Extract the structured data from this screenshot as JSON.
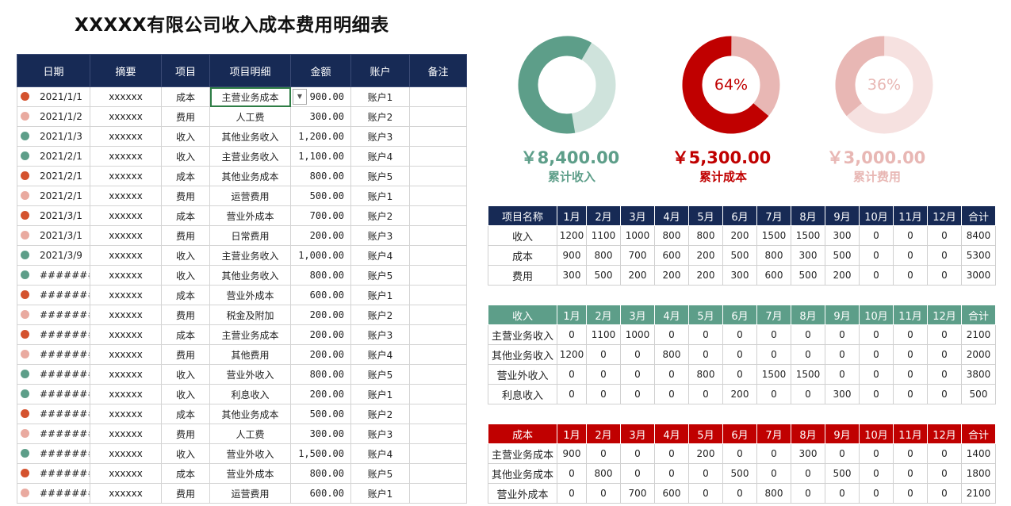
{
  "title": "XXXXX有限公司收入成本费用明细表",
  "colors": {
    "navy": "#172a55",
    "income": "#5d9e89",
    "cost": "#c00000",
    "expense": "#e8b7b4"
  },
  "ledger": {
    "headers": [
      "日期",
      "摘要",
      "项目",
      "项目明细",
      "金额",
      "账户",
      "备注"
    ],
    "rows": [
      {
        "date": "2021/1/1",
        "summary": "xxxxxx",
        "item": "成本",
        "detail": "主营业务成本",
        "amount": "900.00",
        "account": "账户1",
        "note": ""
      },
      {
        "date": "2021/1/2",
        "summary": "xxxxxx",
        "item": "费用",
        "detail": "人工费",
        "amount": "300.00",
        "account": "账户2",
        "note": ""
      },
      {
        "date": "2021/1/3",
        "summary": "xxxxxx",
        "item": "收入",
        "detail": "其他业务收入",
        "amount": "1,200.00",
        "account": "账户3",
        "note": ""
      },
      {
        "date": "2021/2/1",
        "summary": "xxxxxx",
        "item": "收入",
        "detail": "主营业务收入",
        "amount": "1,100.00",
        "account": "账户4",
        "note": ""
      },
      {
        "date": "2021/2/1",
        "summary": "xxxxxx",
        "item": "成本",
        "detail": "其他业务成本",
        "amount": "800.00",
        "account": "账户5",
        "note": ""
      },
      {
        "date": "2021/2/1",
        "summary": "xxxxxx",
        "item": "费用",
        "detail": "运营费用",
        "amount": "500.00",
        "account": "账户1",
        "note": ""
      },
      {
        "date": "2021/3/1",
        "summary": "xxxxxx",
        "item": "成本",
        "detail": "营业外成本",
        "amount": "700.00",
        "account": "账户2",
        "note": ""
      },
      {
        "date": "2021/3/1",
        "summary": "xxxxxx",
        "item": "费用",
        "detail": "日常费用",
        "amount": "200.00",
        "account": "账户3",
        "note": ""
      },
      {
        "date": "2021/3/9",
        "summary": "xxxxxx",
        "item": "收入",
        "detail": "主营业务收入",
        "amount": "1,000.00",
        "account": "账户4",
        "note": ""
      },
      {
        "date": "########",
        "summary": "xxxxxx",
        "item": "收入",
        "detail": "其他业务收入",
        "amount": "800.00",
        "account": "账户5",
        "note": ""
      },
      {
        "date": "########",
        "summary": "xxxxxx",
        "item": "成本",
        "detail": "营业外成本",
        "amount": "600.00",
        "account": "账户1",
        "note": ""
      },
      {
        "date": "########",
        "summary": "xxxxxx",
        "item": "费用",
        "detail": "税金及附加",
        "amount": "200.00",
        "account": "账户2",
        "note": ""
      },
      {
        "date": "########",
        "summary": "xxxxxx",
        "item": "成本",
        "detail": "主营业务成本",
        "amount": "200.00",
        "account": "账户3",
        "note": ""
      },
      {
        "date": "########",
        "summary": "xxxxxx",
        "item": "费用",
        "detail": "其他费用",
        "amount": "200.00",
        "account": "账户4",
        "note": ""
      },
      {
        "date": "########",
        "summary": "xxxxxx",
        "item": "收入",
        "detail": "营业外收入",
        "amount": "800.00",
        "account": "账户5",
        "note": ""
      },
      {
        "date": "########",
        "summary": "xxxxxx",
        "item": "收入",
        "detail": "利息收入",
        "amount": "200.00",
        "account": "账户1",
        "note": ""
      },
      {
        "date": "########",
        "summary": "xxxxxx",
        "item": "成本",
        "detail": "其他业务成本",
        "amount": "500.00",
        "account": "账户2",
        "note": ""
      },
      {
        "date": "########",
        "summary": "xxxxxx",
        "item": "费用",
        "detail": "人工费",
        "amount": "300.00",
        "account": "账户3",
        "note": ""
      },
      {
        "date": "########",
        "summary": "xxxxxx",
        "item": "收入",
        "detail": "营业外收入",
        "amount": "1,500.00",
        "account": "账户4",
        "note": ""
      },
      {
        "date": "########",
        "summary": "xxxxxx",
        "item": "成本",
        "detail": "营业外成本",
        "amount": "800.00",
        "account": "账户5",
        "note": ""
      },
      {
        "date": "########",
        "summary": "xxxxxx",
        "item": "费用",
        "detail": "运营费用",
        "amount": "600.00",
        "account": "账户1",
        "note": ""
      }
    ]
  },
  "kpis": [
    {
      "total": "￥8,400.00",
      "caption": "累计收入",
      "percent_label": "",
      "share": 0.61,
      "color": "#5d9e89",
      "rest": "#cfe3dc"
    },
    {
      "total": "￥5,300.00",
      "caption": "累计成本",
      "percent_label": "64%",
      "share": 0.64,
      "color": "#c00000",
      "rest": "#e8b7b4"
    },
    {
      "total": "￥3,000.00",
      "caption": "累计费用",
      "percent_label": "36%",
      "share": 0.36,
      "color": "#e8b7b4",
      "rest": "#f6e1e0"
    }
  ],
  "months": [
    "1月",
    "2月",
    "3月",
    "4月",
    "5月",
    "6月",
    "7月",
    "8月",
    "9月",
    "10月",
    "11月",
    "12月"
  ],
  "tables": [
    {
      "key": "summary",
      "corner": "项目名称",
      "total_label": "合计",
      "color": "#172a55",
      "rows": [
        {
          "label": "收入",
          "values": [
            "1200",
            "1100",
            "1000",
            "800",
            "800",
            "200",
            "1500",
            "1500",
            "300",
            "0",
            "0",
            "0"
          ],
          "total": "8400"
        },
        {
          "label": "成本",
          "values": [
            "900",
            "800",
            "700",
            "600",
            "200",
            "500",
            "800",
            "300",
            "500",
            "0",
            "0",
            "0"
          ],
          "total": "5300"
        },
        {
          "label": "费用",
          "values": [
            "300",
            "500",
            "200",
            "200",
            "200",
            "300",
            "600",
            "500",
            "200",
            "0",
            "0",
            "0"
          ],
          "total": "3000"
        }
      ]
    },
    {
      "key": "income",
      "corner": "收入",
      "total_label": "合计",
      "color": "#5d9e89",
      "rows": [
        {
          "label": "主营业务收入",
          "values": [
            "0",
            "1100",
            "1000",
            "0",
            "0",
            "0",
            "0",
            "0",
            "0",
            "0",
            "0",
            "0"
          ],
          "total": "2100"
        },
        {
          "label": "其他业务收入",
          "values": [
            "1200",
            "0",
            "0",
            "800",
            "0",
            "0",
            "0",
            "0",
            "0",
            "0",
            "0",
            "0"
          ],
          "total": "2000"
        },
        {
          "label": "营业外收入",
          "values": [
            "0",
            "0",
            "0",
            "0",
            "800",
            "0",
            "1500",
            "1500",
            "0",
            "0",
            "0",
            "0"
          ],
          "total": "3800"
        },
        {
          "label": "利息收入",
          "values": [
            "0",
            "0",
            "0",
            "0",
            "0",
            "200",
            "0",
            "0",
            "300",
            "0",
            "0",
            "0"
          ],
          "total": "500"
        }
      ]
    },
    {
      "key": "cost",
      "corner": "成本",
      "total_label": "合计",
      "color": "#c00000",
      "rows": [
        {
          "label": "主营业务成本",
          "values": [
            "900",
            "0",
            "0",
            "0",
            "200",
            "0",
            "0",
            "300",
            "0",
            "0",
            "0",
            "0"
          ],
          "total": "1400"
        },
        {
          "label": "其他业务成本",
          "values": [
            "0",
            "800",
            "0",
            "0",
            "0",
            "500",
            "0",
            "0",
            "500",
            "0",
            "0",
            "0"
          ],
          "total": "1800"
        },
        {
          "label": "营业外成本",
          "values": [
            "0",
            "0",
            "700",
            "600",
            "0",
            "0",
            "800",
            "0",
            "0",
            "0",
            "0",
            "0"
          ],
          "total": "2100"
        }
      ]
    }
  ]
}
